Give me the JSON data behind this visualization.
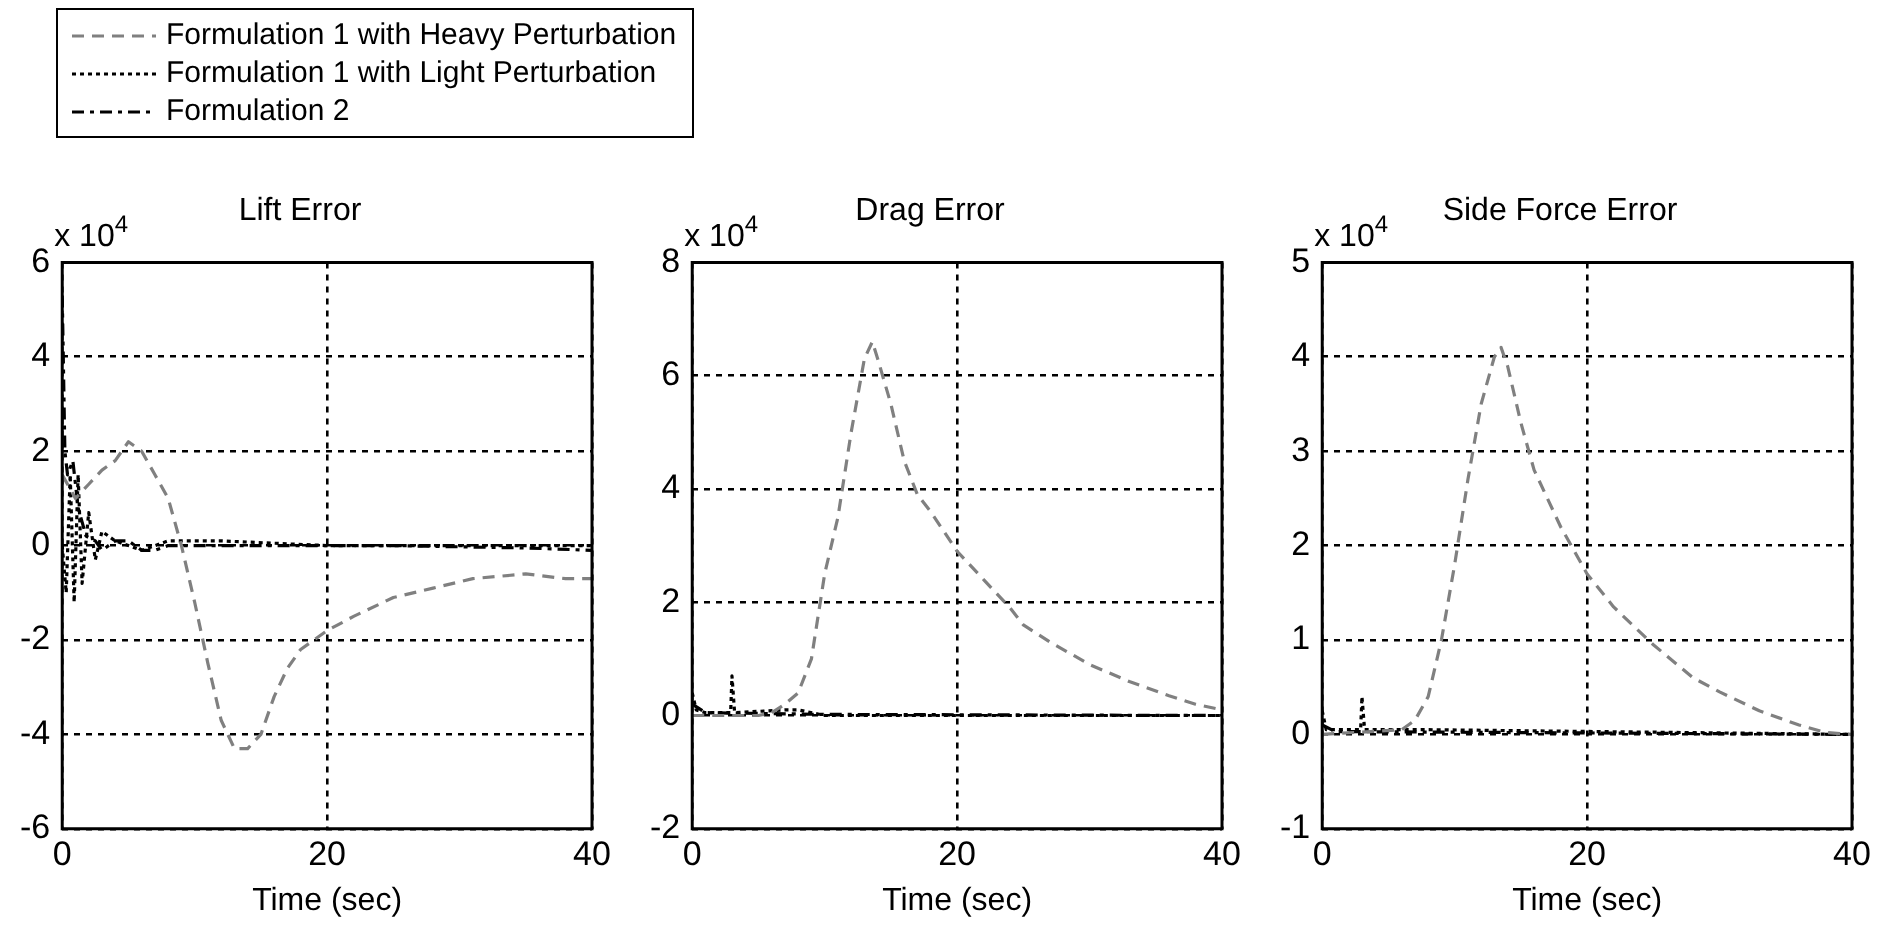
{
  "chart_data": [
    {
      "type": "line",
      "title": "Lift Error",
      "xlabel": "Time (sec)",
      "annotations": [
        "x 10$^{4}$"
      ],
      "xlim": [
        0,
        40
      ],
      "xticks": [
        0,
        20,
        40
      ],
      "ylim": [
        -6,
        6
      ],
      "yticks": [
        -6,
        -4,
        -2,
        0,
        2,
        4,
        6
      ],
      "grid": true,
      "legend": "top",
      "series": [
        {
          "name": "Formulation 1 with Heavy Perturbation",
          "color": "#808080",
          "line_style": "dashed",
          "x": [
            0,
            1,
            2,
            3,
            4,
            5,
            6,
            7,
            8,
            9,
            10,
            11,
            12,
            13,
            14,
            15,
            16,
            17,
            18,
            20,
            22,
            25,
            28,
            31,
            35,
            38,
            40
          ],
          "values": [
            1.5,
            1.0,
            1.3,
            1.6,
            1.8,
            2.2,
            2.0,
            1.5,
            1.0,
            0,
            -1.2,
            -2.5,
            -3.7,
            -4.3,
            -4.3,
            -4.0,
            -3.2,
            -2.6,
            -2.2,
            -1.8,
            -1.5,
            -1.1,
            -0.9,
            -0.7,
            -0.6,
            -0.7,
            -0.7
          ]
        },
        {
          "name": "Formulation 1 with Light Perturbation",
          "color": "#000000",
          "line_style": "dotted",
          "x": [
            0,
            0.3,
            0.6,
            0.9,
            1.2,
            1.5,
            2,
            2.5,
            3,
            4,
            6,
            8,
            10,
            12,
            20,
            30,
            40
          ],
          "values": [
            0,
            -1,
            1.5,
            -1.2,
            1.5,
            -0.8,
            0.7,
            -0.3,
            0.3,
            0.1,
            -0.1,
            0.1,
            0.1,
            0.1,
            0,
            0,
            0
          ]
        },
        {
          "name": "Formulation 2",
          "color": "#000000",
          "line_style": "dashdot",
          "x": [
            0,
            0.2,
            0.4,
            0.8,
            1.2,
            1.8,
            2.5,
            3,
            4,
            5,
            6,
            7,
            8,
            15,
            25,
            35,
            40
          ],
          "values": [
            5.3,
            2,
            1.5,
            1.8,
            0.8,
            0.2,
            0.1,
            -0.1,
            0.1,
            0.1,
            -0.1,
            -0.1,
            0,
            0,
            0,
            -0.05,
            -0.1
          ]
        }
      ]
    },
    {
      "type": "line",
      "title": "Drag Error",
      "xlabel": "Time (sec)",
      "annotations": [
        "x 10$^{4}$"
      ],
      "xlim": [
        0,
        40
      ],
      "xticks": [
        0,
        20,
        40
      ],
      "ylim": [
        -2,
        8
      ],
      "yticks": [
        -2,
        0,
        2,
        4,
        6,
        8
      ],
      "grid": true,
      "series": [
        {
          "color": "#808080",
          "line_style": "dashed",
          "x": [
            0,
            5,
            6,
            7,
            8,
            9,
            10,
            11,
            12,
            13,
            13.6,
            14,
            15,
            16,
            17,
            18,
            20,
            22,
            24,
            25,
            27,
            30,
            33,
            36,
            38,
            40
          ],
          "values": [
            0,
            0,
            0.05,
            0.2,
            0.4,
            1.0,
            2.5,
            3.5,
            5.0,
            6.3,
            6.6,
            6.3,
            5.5,
            4.5,
            3.9,
            3.6,
            2.9,
            2.4,
            1.9,
            1.6,
            1.3,
            0.9,
            0.6,
            0.35,
            0.2,
            0.1
          ]
        },
        {
          "color": "#000000",
          "line_style": "dotted",
          "x": [
            0,
            0.3,
            1,
            2.9,
            3,
            3.2,
            7,
            8,
            10,
            40
          ],
          "values": [
            0.4,
            0.1,
            0.05,
            0.05,
            0.7,
            0.05,
            0.1,
            0.1,
            0,
            0
          ]
        },
        {
          "color": "#000000",
          "line_style": "dashdot",
          "x": [
            0,
            1,
            10,
            40
          ],
          "values": [
            0.2,
            0.05,
            0.02,
            0
          ]
        }
      ]
    },
    {
      "type": "line",
      "title": "Side Force Error",
      "xlabel": "Time (sec)",
      "annotations": [
        "x 10$^{4}$"
      ],
      "xlim": [
        0,
        40
      ],
      "xticks": [
        0,
        20,
        40
      ],
      "ylim": [
        -1,
        5
      ],
      "yticks": [
        -1,
        0,
        1,
        2,
        3,
        4,
        5
      ],
      "grid": true,
      "series": [
        {
          "color": "#808080",
          "line_style": "dashed",
          "x": [
            0,
            6,
            7,
            8,
            9,
            10,
            11,
            12,
            13,
            13.5,
            14,
            15,
            16,
            17,
            18,
            20,
            22,
            25,
            28,
            30,
            33,
            36,
            38,
            40
          ],
          "values": [
            0,
            0.05,
            0.15,
            0.4,
            1.0,
            1.8,
            2.7,
            3.5,
            4.0,
            4.1,
            3.9,
            3.3,
            2.8,
            2.5,
            2.2,
            1.7,
            1.35,
            0.95,
            0.6,
            0.45,
            0.25,
            0.1,
            0.02,
            0
          ]
        },
        {
          "color": "#000000",
          "line_style": "dotted",
          "x": [
            0,
            0.3,
            2.9,
            3,
            3.2,
            8,
            40
          ],
          "values": [
            0.25,
            0.05,
            0.05,
            0.4,
            0.05,
            0.05,
            0
          ]
        },
        {
          "color": "#000000",
          "line_style": "dashdot",
          "x": [
            0,
            1,
            40
          ],
          "values": [
            0.1,
            0.03,
            0
          ]
        }
      ]
    }
  ]
}
